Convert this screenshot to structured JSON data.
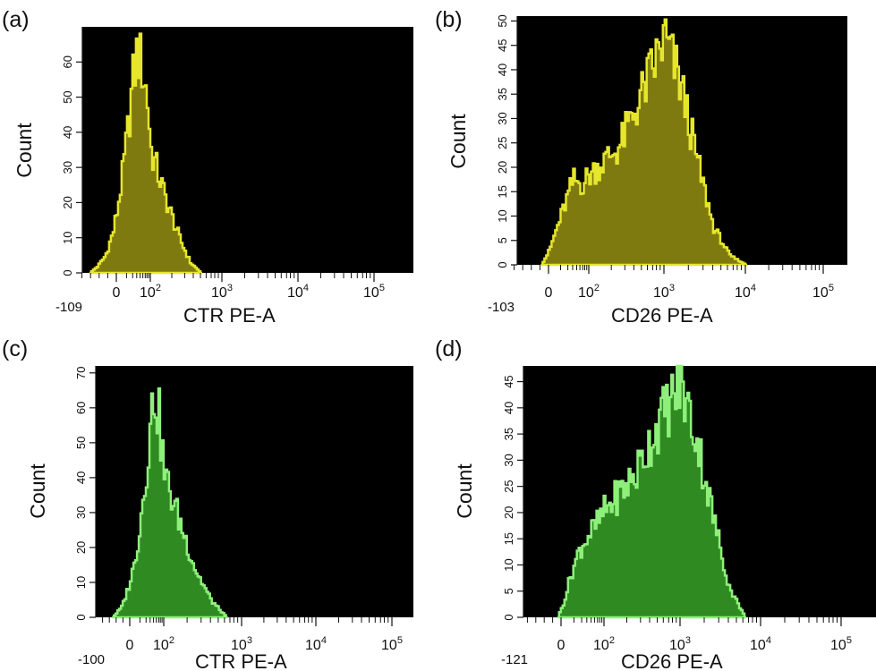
{
  "chart_data": [
    {
      "panel": "(a)",
      "type": "area",
      "color": "#e6e62c",
      "fill": "#7f7a10",
      "xlabel": "CTR PE-A",
      "ylabel": "Count",
      "x_axis_min_label": "-109",
      "xticks": [
        "0",
        "10",
        "10",
        "10",
        "10"
      ],
      "xtick_exponents": [
        "",
        "2",
        "3",
        "4",
        "5"
      ],
      "xlim": [
        -109,
        5
      ],
      "yticks": [
        0,
        10,
        20,
        30,
        40,
        50,
        60
      ],
      "ylim": [
        0,
        70
      ],
      "series": [
        {
          "x": [
            -0.7,
            -0.5,
            -0.3,
            -0.1,
            0.0,
            0.3,
            0.6,
            0.9,
            1.2,
            1.5,
            1.8,
            2.0,
            2.2,
            2.4,
            2.55,
            2.7
          ],
          "values": [
            0,
            2,
            5,
            12,
            18,
            28,
            40,
            55,
            65,
            60,
            50,
            36,
            22,
            10,
            3,
            0
          ]
        }
      ]
    },
    {
      "panel": "(b)",
      "type": "area",
      "color": "#e6e62c",
      "fill": "#7f7a10",
      "xlabel": "CD26 PE-A",
      "ylabel": "Count",
      "x_axis_min_label": "-103",
      "xticks": [
        "0",
        "10",
        "10",
        "10",
        "10"
      ],
      "xtick_exponents": [
        "",
        "2",
        "3",
        "4",
        "5"
      ],
      "xlim": [
        -103,
        5
      ],
      "yticks": [
        0,
        5,
        10,
        15,
        20,
        25,
        30,
        35,
        40,
        45,
        50
      ],
      "ylim": [
        0,
        51
      ],
      "series": [
        {
          "x": [
            -0.2,
            0.0,
            0.4,
            0.8,
            1.2,
            1.6,
            2.0,
            2.4,
            2.8,
            3.0,
            3.2,
            3.4,
            3.6,
            3.8,
            4.0
          ],
          "values": [
            0,
            3,
            8,
            13,
            18,
            17,
            19,
            25,
            40,
            48,
            38,
            22,
            8,
            2,
            0
          ]
        }
      ]
    },
    {
      "panel": "(c)",
      "type": "area",
      "color": "#8ef07a",
      "fill": "#2f8a22",
      "xlabel": "CTR PE-A",
      "ylabel": "Count",
      "x_axis_min_label": "-100",
      "xticks": [
        "0",
        "10",
        "10",
        "10",
        "10"
      ],
      "xtick_exponents": [
        "",
        "2",
        "3",
        "4",
        "5"
      ],
      "xlim": [
        -100,
        5
      ],
      "yticks": [
        0,
        10,
        20,
        30,
        40,
        50,
        60,
        70
      ],
      "ylim": [
        0,
        72
      ],
      "series": [
        {
          "x": [
            -0.6,
            -0.3,
            -0.1,
            0.2,
            0.5,
            0.8,
            1.1,
            1.4,
            1.7,
            2.0,
            2.2,
            2.4,
            2.6,
            2.8
          ],
          "values": [
            0,
            3,
            8,
            15,
            25,
            38,
            52,
            68,
            58,
            42,
            28,
            14,
            5,
            0
          ]
        }
      ]
    },
    {
      "panel": "(d)",
      "type": "area",
      "color": "#8ef07a",
      "fill": "#2f8a22",
      "xlabel": "CD26 PE-A",
      "ylabel": "Count",
      "x_axis_min_label": "-121",
      "xticks": [
        "0",
        "10",
        "10",
        "10",
        "10"
      ],
      "xtick_exponents": [
        "",
        "2",
        "3",
        "4",
        "5"
      ],
      "xlim": [
        -121,
        5
      ],
      "yticks": [
        0,
        5,
        10,
        15,
        20,
        25,
        30,
        35,
        40,
        45
      ],
      "ylim": [
        0,
        48
      ],
      "series": [
        {
          "x": [
            -0.1,
            0.1,
            0.4,
            0.8,
            1.2,
            1.6,
            2.0,
            2.4,
            2.7,
            3.0,
            3.2,
            3.4,
            3.6,
            3.8
          ],
          "values": [
            0,
            3,
            8,
            13,
            16,
            18,
            21,
            28,
            38,
            46,
            35,
            20,
            6,
            0
          ]
        }
      ]
    }
  ]
}
